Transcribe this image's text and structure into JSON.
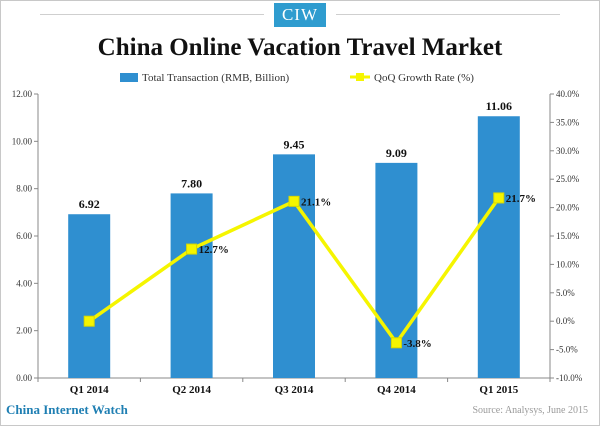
{
  "logo_text": "CIW",
  "footer": {
    "brand": "China Internet Watch",
    "source": "Source: Analysys, June 2015"
  },
  "colors": {
    "bar": "#2f8fd0",
    "line": "#f5f500",
    "line_marker": "#f5f500",
    "logo_bg": "#2f9ccf",
    "brand_text": "#1f7fb3"
  },
  "chart_data": {
    "type": "bar",
    "title": "China Online Vacation Travel Market",
    "categories": [
      "Q1 2014",
      "Q2 2014",
      "Q3 2014",
      "Q4 2014",
      "Q1 2015"
    ],
    "series": [
      {
        "name": "Total Transaction (RMB, Billion)",
        "type": "bar",
        "axis": "left",
        "values": [
          6.92,
          7.8,
          9.45,
          9.09,
          11.06
        ],
        "labels": [
          "6.92",
          "7.80",
          "9.45",
          "9.09",
          "11.06"
        ]
      },
      {
        "name": "QoQ Growth Rate (%)",
        "type": "line",
        "axis": "right",
        "values": [
          0.0,
          12.7,
          21.1,
          -3.8,
          21.7
        ],
        "labels": [
          "",
          "12.7%",
          "21.1%",
          "-3.8%",
          "21.7%"
        ]
      }
    ],
    "left_axis": {
      "ylim": [
        0,
        12
      ],
      "ticks": [
        0,
        2,
        4,
        6,
        8,
        10,
        12
      ],
      "tick_labels": [
        "0.00",
        "2.00",
        "4.00",
        "6.00",
        "8.00",
        "10.00",
        "12.00"
      ]
    },
    "right_axis": {
      "ylim": [
        -10,
        40
      ],
      "ticks": [
        -10,
        -5,
        0,
        5,
        10,
        15,
        20,
        25,
        30,
        35,
        40
      ],
      "tick_labels": [
        "-10.0%",
        "-5.0%",
        "0.0%",
        "5.0%",
        "10.0%",
        "15.0%",
        "20.0%",
        "25.0%",
        "30.0%",
        "35.0%",
        "40.0%"
      ]
    },
    "legend_position": "top",
    "grid": false
  }
}
